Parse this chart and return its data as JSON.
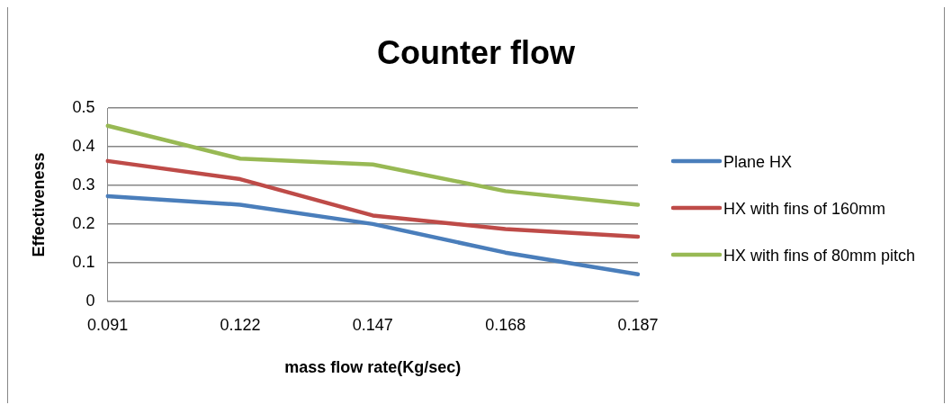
{
  "chart_data": {
    "type": "line",
    "title": "Counter flow",
    "xlabel": "mass flow rate(Kg/sec)",
    "ylabel": "Effectiveness",
    "categories": [
      "0.091",
      "0.122",
      "0.147",
      "0.168",
      "0.187"
    ],
    "series": [
      {
        "name": "Plane HX",
        "color": "#4a7ebb",
        "values": [
          0.272,
          0.25,
          0.2,
          0.126,
          0.07
        ]
      },
      {
        "name": "HX with fins of 160mm",
        "color": "#be4b48",
        "values": [
          0.363,
          0.316,
          0.222,
          0.187,
          0.167
        ]
      },
      {
        "name": "HX with fins of 80mm pitch",
        "color": "#98b954",
        "values": [
          0.454,
          0.369,
          0.354,
          0.285,
          0.25
        ]
      }
    ],
    "ylim": [
      0,
      0.5
    ],
    "yticks": [
      0,
      0.1,
      0.2,
      0.3,
      0.4,
      0.5
    ],
    "grid": "y",
    "legend": "right",
    "marker": "none",
    "line_style": "solid"
  }
}
